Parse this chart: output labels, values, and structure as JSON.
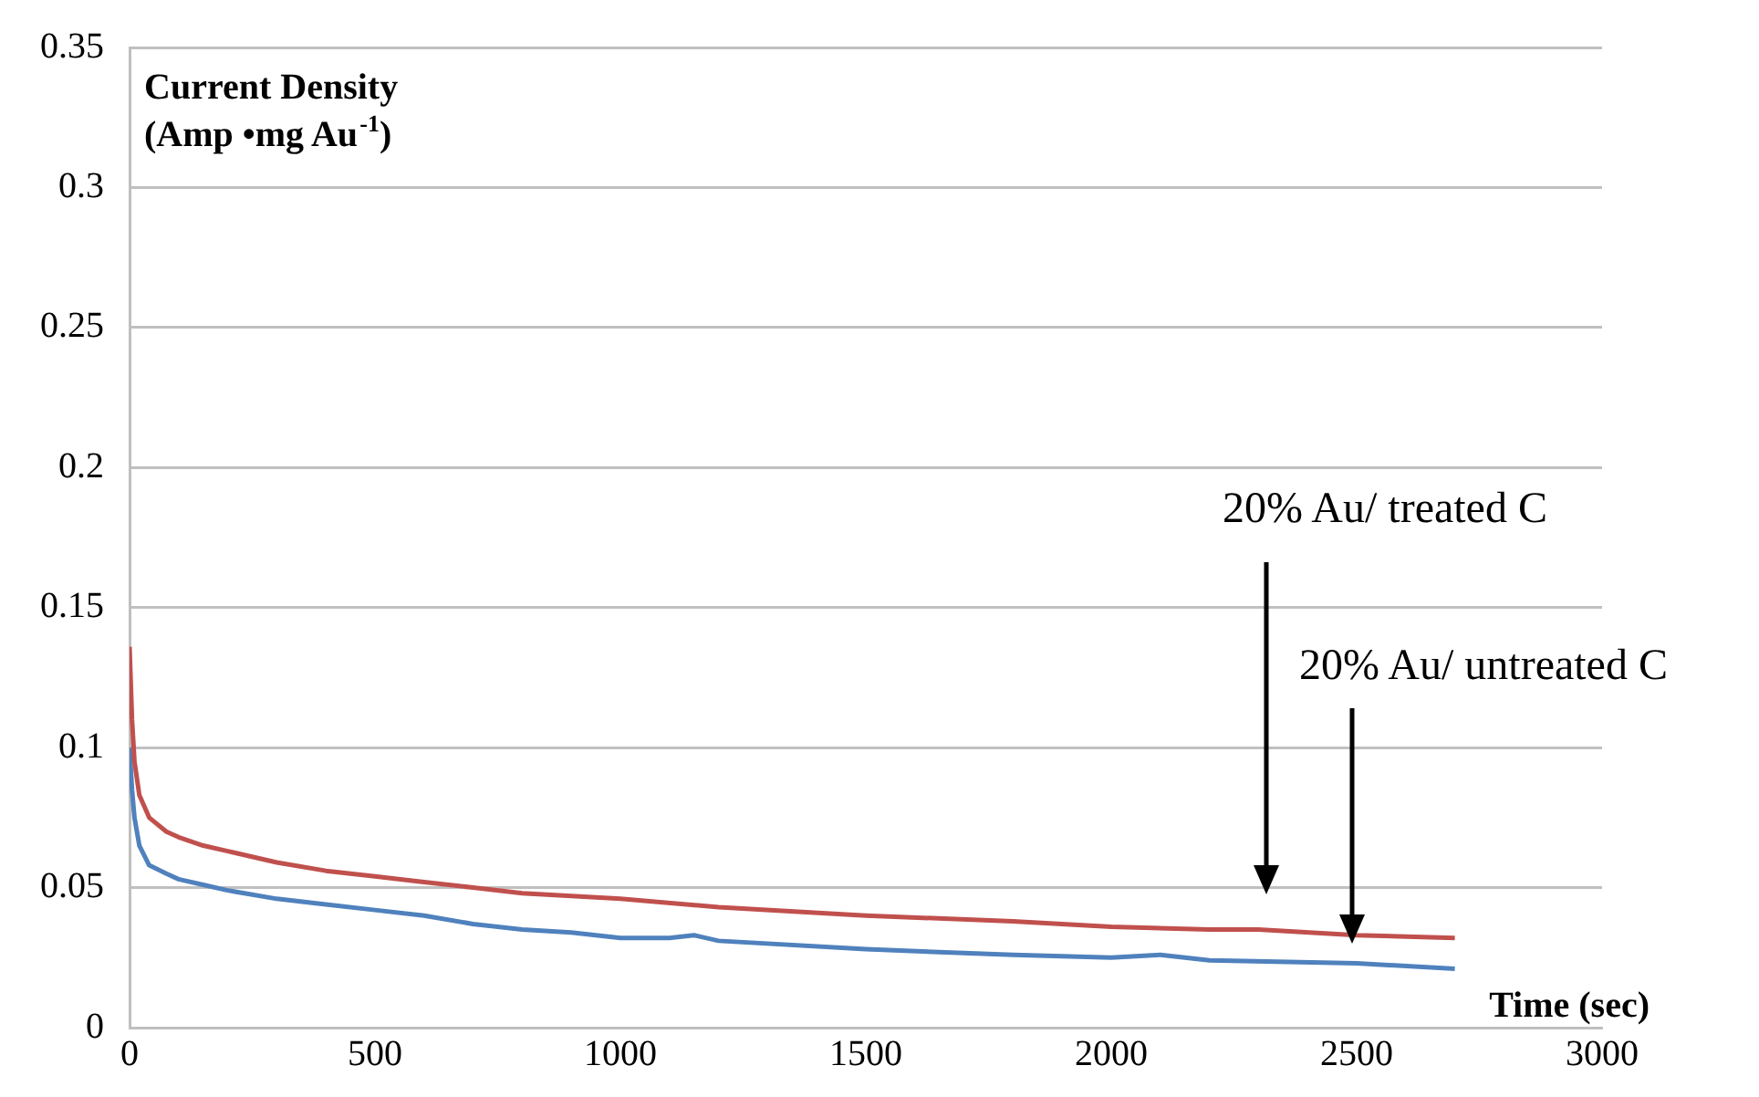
{
  "chart_data": {
    "type": "line",
    "ylabel": "Current Density\n(Amp •mg Au$^{-1}$)",
    "xlabel": "Time (sec)",
    "xlim": [
      0,
      3000
    ],
    "xticks": [
      0,
      500,
      1000,
      1500,
      2000,
      2500,
      3000
    ],
    "ylim": [
      0,
      0.35
    ],
    "yticks": [
      0,
      0.05,
      0.1,
      0.15,
      0.2,
      0.25,
      0.3,
      0.35
    ],
    "grid": "y",
    "legend": false,
    "marker": "none",
    "line_style": "solid",
    "series": [
      {
        "color": "#c0504d",
        "x": [
          0,
          5,
          10,
          20,
          40,
          75,
          100,
          150,
          200,
          300,
          400,
          500,
          600,
          700,
          800,
          1000,
          1200,
          1500,
          1800,
          2000,
          2200,
          2300,
          2500,
          2700
        ],
        "values": [
          0.136,
          0.11,
          0.095,
          0.083,
          0.075,
          0.07,
          0.068,
          0.065,
          0.063,
          0.059,
          0.056,
          0.054,
          0.052,
          0.05,
          0.048,
          0.046,
          0.043,
          0.04,
          0.038,
          0.036,
          0.035,
          0.035,
          0.033,
          0.032
        ]
      },
      {
        "color": "#4f81bd",
        "x": [
          0,
          5,
          10,
          20,
          40,
          75,
          100,
          150,
          200,
          300,
          400,
          500,
          600,
          700,
          800,
          900,
          1000,
          1100,
          1150,
          1200,
          1500,
          1800,
          2000,
          2100,
          2200,
          2500,
          2700
        ],
        "values": [
          0.1,
          0.085,
          0.075,
          0.065,
          0.058,
          0.055,
          0.053,
          0.051,
          0.049,
          0.046,
          0.044,
          0.042,
          0.04,
          0.037,
          0.035,
          0.034,
          0.032,
          0.032,
          0.033,
          0.031,
          0.028,
          0.026,
          0.025,
          0.026,
          0.024,
          0.023,
          0.021
        ]
      }
    ],
    "annotations": [
      "20% Au/ treated C",
      "20% Au/ untreated C"
    ]
  }
}
